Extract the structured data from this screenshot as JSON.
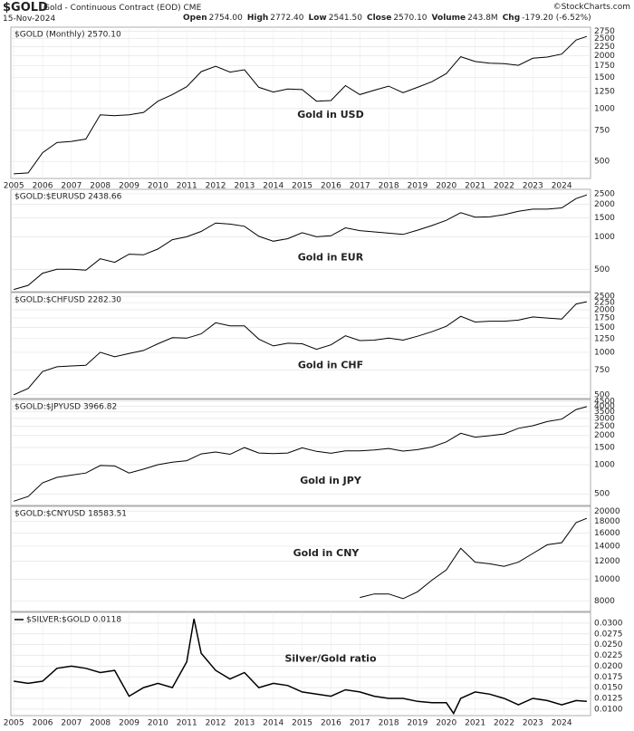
{
  "header": {
    "symbol": "$GOLD",
    "description": "Gold - Continuous Contract (EOD) CME",
    "date": "15-Nov-2024",
    "source": "©StockCharts.com",
    "quote": [
      {
        "label": "Open",
        "value": "2754.00"
      },
      {
        "label": "High",
        "value": "2772.40"
      },
      {
        "label": "Low",
        "value": "2541.50"
      },
      {
        "label": "Close",
        "value": "2570.10"
      },
      {
        "label": "Volume",
        "value": "243.8M"
      },
      {
        "label": "Chg",
        "value": "-179.20 (-6.52%)"
      }
    ]
  },
  "chart_data": [
    {
      "type": "line",
      "label": "$GOLD (Monthly) 2570.10",
      "annotation": "Gold in USD",
      "log_scale": true,
      "grid": true,
      "color": "#000000",
      "x": [
        2005,
        2005.5,
        2006,
        2006.5,
        2007,
        2007.5,
        2008,
        2008.5,
        2009,
        2009.5,
        2010,
        2010.5,
        2011,
        2011.5,
        2012,
        2012.5,
        2013,
        2013.5,
        2014,
        2014.5,
        2015,
        2015.5,
        2016,
        2016.5,
        2017,
        2017.5,
        2018,
        2018.5,
        2019,
        2019.5,
        2020,
        2020.5,
        2021,
        2021.5,
        2022,
        2022.5,
        2023,
        2023.5,
        2024,
        2024.5,
        2024.87
      ],
      "values": [
        425,
        430,
        560,
        640,
        650,
        670,
        920,
        910,
        920,
        950,
        1100,
        1200,
        1330,
        1620,
        1740,
        1610,
        1660,
        1320,
        1240,
        1290,
        1280,
        1100,
        1110,
        1350,
        1200,
        1270,
        1340,
        1230,
        1320,
        1420,
        1580,
        1970,
        1850,
        1810,
        1800,
        1760,
        1930,
        1960,
        2040,
        2450,
        2570.1
      ],
      "xlim": [
        2004.9,
        2025.0
      ],
      "xticks": [
        2005,
        2006,
        2007,
        2008,
        2009,
        2010,
        2011,
        2012,
        2013,
        2014,
        2015,
        2016,
        2017,
        2018,
        2019,
        2020,
        2021,
        2022,
        2023,
        2024
      ],
      "ylim": [
        400,
        2900
      ],
      "yticks": [
        500,
        750,
        1000,
        1250,
        1500,
        1750,
        2000,
        2250,
        2500,
        2750
      ]
    },
    {
      "type": "line",
      "label": "$GOLD:$EURUSD 2438.66",
      "annotation": "Gold in EUR",
      "log_scale": true,
      "grid": true,
      "color": "#000000",
      "x": [
        2005,
        2005.5,
        2006,
        2006.5,
        2007,
        2007.5,
        2008,
        2008.5,
        2009,
        2009.5,
        2010,
        2010.5,
        2011,
        2011.5,
        2012,
        2012.5,
        2013,
        2013.5,
        2014,
        2014.5,
        2015,
        2015.5,
        2016,
        2016.5,
        2017,
        2017.5,
        2018,
        2018.5,
        2019,
        2019.5,
        2020,
        2020.5,
        2021,
        2021.5,
        2022,
        2022.5,
        2023,
        2023.5,
        2024,
        2024.5,
        2024.87
      ],
      "values": [
        325,
        355,
        460,
        500,
        500,
        490,
        625,
        580,
        690,
        680,
        770,
        940,
        1000,
        1120,
        1340,
        1310,
        1250,
        1010,
        910,
        960,
        1090,
        1000,
        1020,
        1210,
        1140,
        1110,
        1080,
        1050,
        1150,
        1270,
        1420,
        1670,
        1520,
        1530,
        1600,
        1720,
        1800,
        1800,
        1850,
        2260,
        2438.66
      ],
      "xlim": [
        2004.9,
        2025.0
      ],
      "ylim": [
        310,
        2750
      ],
      "yticks": [
        500,
        1000,
        1500,
        2000,
        2500
      ]
    },
    {
      "type": "line",
      "label": "$GOLD:$CHFUSD 2282.30",
      "annotation": "Gold in CHF",
      "log_scale": true,
      "grid": true,
      "color": "#000000",
      "x": [
        2005,
        2005.5,
        2006,
        2006.5,
        2007,
        2007.5,
        2008,
        2008.5,
        2009,
        2009.5,
        2010,
        2010.5,
        2011,
        2011.5,
        2012,
        2012.5,
        2013,
        2013.5,
        2014,
        2014.5,
        2015,
        2015.5,
        2016,
        2016.5,
        2017,
        2017.5,
        2018,
        2018.5,
        2019,
        2019.5,
        2020,
        2020.5,
        2021,
        2021.5,
        2022,
        2022.5,
        2023,
        2023.5,
        2024,
        2024.5,
        2024.87
      ],
      "values": [
        500,
        555,
        730,
        790,
        800,
        810,
        1000,
        930,
        980,
        1030,
        1150,
        1270,
        1260,
        1350,
        1620,
        1540,
        1540,
        1240,
        1110,
        1160,
        1150,
        1050,
        1130,
        1310,
        1210,
        1220,
        1260,
        1220,
        1300,
        1400,
        1530,
        1800,
        1640,
        1660,
        1660,
        1690,
        1780,
        1750,
        1720,
        2200,
        2282.3
      ],
      "xlim": [
        2004.9,
        2025.0
      ],
      "ylim": [
        470,
        2650
      ],
      "yticks": [
        500,
        750,
        1000,
        1250,
        1500,
        1750,
        2000,
        2250,
        2500
      ]
    },
    {
      "type": "line",
      "label": "$GOLD:$JPYUSD 3966.82",
      "annotation": "Gold in JPY",
      "log_scale": true,
      "grid": true,
      "color": "#000000",
      "x": [
        2005,
        2005.5,
        2006,
        2006.5,
        2007,
        2007.5,
        2008,
        2008.5,
        2009,
        2009.5,
        2010,
        2010.5,
        2011,
        2011.5,
        2012,
        2012.5,
        2013,
        2013.5,
        2014,
        2014.5,
        2015,
        2015.5,
        2016,
        2016.5,
        2017,
        2017.5,
        2018,
        2018.5,
        2019,
        2019.5,
        2020,
        2020.5,
        2021,
        2021.5,
        2022,
        2022.5,
        2023,
        2023.5,
        2024,
        2024.5,
        2024.87
      ],
      "values": [
        420,
        470,
        650,
        740,
        780,
        820,
        980,
        970,
        820,
        900,
        1000,
        1060,
        1100,
        1290,
        1350,
        1280,
        1500,
        1320,
        1300,
        1320,
        1490,
        1370,
        1310,
        1390,
        1390,
        1420,
        1470,
        1380,
        1430,
        1520,
        1720,
        2110,
        1920,
        1990,
        2070,
        2370,
        2520,
        2780,
        2950,
        3700,
        3966.82
      ],
      "xlim": [
        2004.9,
        2025.0
      ],
      "ylim": [
        380,
        4700
      ],
      "yticks": [
        500,
        1000,
        1500,
        2000,
        2500,
        3000,
        3500,
        4000,
        4500
      ]
    },
    {
      "type": "line",
      "label": "$GOLD:$CNYUSD 18583.51",
      "annotation": "Gold in CNY",
      "log_scale": true,
      "grid": true,
      "color": "#000000",
      "x": [
        2017,
        2017.5,
        2018,
        2018.5,
        2019,
        2019.5,
        2020,
        2020.5,
        2021,
        2021.5,
        2022,
        2022.5,
        2023,
        2023.5,
        2024,
        2024.5,
        2024.87
      ],
      "values": [
        8300,
        8600,
        8600,
        8200,
        8800,
        9900,
        11000,
        13700,
        11900,
        11700,
        11400,
        11900,
        13000,
        14200,
        14500,
        17800,
        18583.51
      ],
      "xlim": [
        2004.9,
        2025.0
      ],
      "ylim": [
        7200,
        21000
      ],
      "yticks": [
        8000,
        10000,
        12000,
        14000,
        16000,
        18000,
        20000
      ]
    },
    {
      "type": "line",
      "label": "$SILVER:$GOLD 0.0118",
      "annotation": "Silver/Gold ratio",
      "log_scale": false,
      "grid": true,
      "color": "#000000",
      "x": [
        2005,
        2005.5,
        2006,
        2006.5,
        2007,
        2007.5,
        2008,
        2008.5,
        2009,
        2009.5,
        2010,
        2010.5,
        2011,
        2011.25,
        2011.5,
        2012,
        2012.5,
        2013,
        2013.5,
        2014,
        2014.5,
        2015,
        2015.5,
        2016,
        2016.5,
        2017,
        2017.5,
        2018,
        2018.5,
        2019,
        2019.5,
        2020,
        2020.25,
        2020.5,
        2021,
        2021.5,
        2022,
        2022.5,
        2023,
        2023.5,
        2024,
        2024.5,
        2024.87
      ],
      "values": [
        0.0165,
        0.016,
        0.0165,
        0.0195,
        0.02,
        0.0195,
        0.0185,
        0.019,
        0.013,
        0.015,
        0.016,
        0.015,
        0.021,
        0.031,
        0.023,
        0.019,
        0.017,
        0.0185,
        0.015,
        0.016,
        0.0155,
        0.014,
        0.0135,
        0.013,
        0.0145,
        0.014,
        0.013,
        0.0125,
        0.0125,
        0.0118,
        0.0115,
        0.0115,
        0.009,
        0.0125,
        0.014,
        0.0135,
        0.0125,
        0.011,
        0.0125,
        0.012,
        0.011,
        0.012,
        0.0118
      ],
      "xlim": [
        2004.9,
        2025.0
      ],
      "xticks": [
        2005,
        2006,
        2007,
        2008,
        2009,
        2010,
        2011,
        2012,
        2013,
        2014,
        2015,
        2016,
        2017,
        2018,
        2019,
        2020,
        2021,
        2022,
        2023,
        2024
      ],
      "ylim": [
        0.0085,
        0.0325
      ],
      "yticks": [
        {
          "value": 0.01,
          "label": "0.0100"
        },
        {
          "value": 0.0125,
          "label": "0.0125"
        },
        {
          "value": 0.015,
          "label": "0.0150"
        },
        {
          "value": 0.0175,
          "label": "0.0175"
        },
        {
          "value": 0.02,
          "label": "0.0200"
        },
        {
          "value": 0.0225,
          "label": "0.0225"
        },
        {
          "value": 0.025,
          "label": "0.0250"
        },
        {
          "value": 0.0275,
          "label": "0.0275"
        },
        {
          "value": 0.03,
          "label": "0.0300"
        }
      ]
    }
  ]
}
